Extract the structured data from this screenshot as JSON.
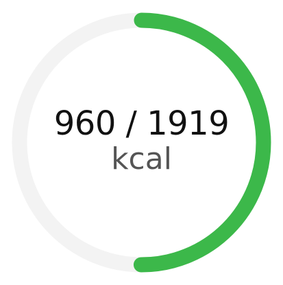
{
  "progress": {
    "value_text": "960 / 1919",
    "unit": "kcal",
    "current": 960,
    "goal": 1919,
    "fraction": 0.5003
  },
  "colors": {
    "progress": "#3cb84a",
    "track": "#f3f3f3",
    "value_text": "#111111",
    "unit_text": "#555555",
    "background": "#ffffff"
  }
}
